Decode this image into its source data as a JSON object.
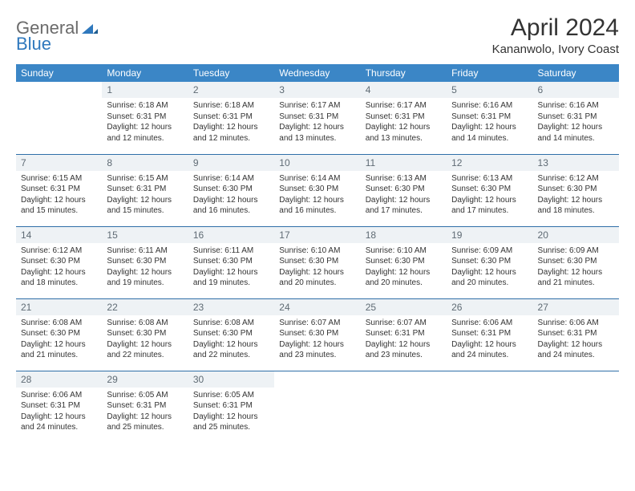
{
  "brand": {
    "general": "General",
    "blue": "Blue"
  },
  "title": "April 2024",
  "location": "Kananwolo, Ivory Coast",
  "colors": {
    "header_bg": "#3b86c6",
    "header_text": "#ffffff",
    "daynum_bg": "#eef2f5",
    "daynum_text": "#5f6b74",
    "rule": "#2f6fa8",
    "body_text": "#333333",
    "logo_gray": "#6b6b6b",
    "logo_blue": "#2f78bd"
  },
  "typography": {
    "title_fontsize": 30,
    "location_fontsize": 15,
    "dayheader_fontsize": 12,
    "daynum_fontsize": 12,
    "cell_fontsize": 10
  },
  "day_headers": [
    "Sunday",
    "Monday",
    "Tuesday",
    "Wednesday",
    "Thursday",
    "Friday",
    "Saturday"
  ],
  "weeks": [
    [
      null,
      {
        "n": "1",
        "sunrise": "Sunrise: 6:18 AM",
        "sunset": "Sunset: 6:31 PM",
        "daylight": "Daylight: 12 hours and 12 minutes."
      },
      {
        "n": "2",
        "sunrise": "Sunrise: 6:18 AM",
        "sunset": "Sunset: 6:31 PM",
        "daylight": "Daylight: 12 hours and 12 minutes."
      },
      {
        "n": "3",
        "sunrise": "Sunrise: 6:17 AM",
        "sunset": "Sunset: 6:31 PM",
        "daylight": "Daylight: 12 hours and 13 minutes."
      },
      {
        "n": "4",
        "sunrise": "Sunrise: 6:17 AM",
        "sunset": "Sunset: 6:31 PM",
        "daylight": "Daylight: 12 hours and 13 minutes."
      },
      {
        "n": "5",
        "sunrise": "Sunrise: 6:16 AM",
        "sunset": "Sunset: 6:31 PM",
        "daylight": "Daylight: 12 hours and 14 minutes."
      },
      {
        "n": "6",
        "sunrise": "Sunrise: 6:16 AM",
        "sunset": "Sunset: 6:31 PM",
        "daylight": "Daylight: 12 hours and 14 minutes."
      }
    ],
    [
      {
        "n": "7",
        "sunrise": "Sunrise: 6:15 AM",
        "sunset": "Sunset: 6:31 PM",
        "daylight": "Daylight: 12 hours and 15 minutes."
      },
      {
        "n": "8",
        "sunrise": "Sunrise: 6:15 AM",
        "sunset": "Sunset: 6:31 PM",
        "daylight": "Daylight: 12 hours and 15 minutes."
      },
      {
        "n": "9",
        "sunrise": "Sunrise: 6:14 AM",
        "sunset": "Sunset: 6:30 PM",
        "daylight": "Daylight: 12 hours and 16 minutes."
      },
      {
        "n": "10",
        "sunrise": "Sunrise: 6:14 AM",
        "sunset": "Sunset: 6:30 PM",
        "daylight": "Daylight: 12 hours and 16 minutes."
      },
      {
        "n": "11",
        "sunrise": "Sunrise: 6:13 AM",
        "sunset": "Sunset: 6:30 PM",
        "daylight": "Daylight: 12 hours and 17 minutes."
      },
      {
        "n": "12",
        "sunrise": "Sunrise: 6:13 AM",
        "sunset": "Sunset: 6:30 PM",
        "daylight": "Daylight: 12 hours and 17 minutes."
      },
      {
        "n": "13",
        "sunrise": "Sunrise: 6:12 AM",
        "sunset": "Sunset: 6:30 PM",
        "daylight": "Daylight: 12 hours and 18 minutes."
      }
    ],
    [
      {
        "n": "14",
        "sunrise": "Sunrise: 6:12 AM",
        "sunset": "Sunset: 6:30 PM",
        "daylight": "Daylight: 12 hours and 18 minutes."
      },
      {
        "n": "15",
        "sunrise": "Sunrise: 6:11 AM",
        "sunset": "Sunset: 6:30 PM",
        "daylight": "Daylight: 12 hours and 19 minutes."
      },
      {
        "n": "16",
        "sunrise": "Sunrise: 6:11 AM",
        "sunset": "Sunset: 6:30 PM",
        "daylight": "Daylight: 12 hours and 19 minutes."
      },
      {
        "n": "17",
        "sunrise": "Sunrise: 6:10 AM",
        "sunset": "Sunset: 6:30 PM",
        "daylight": "Daylight: 12 hours and 20 minutes."
      },
      {
        "n": "18",
        "sunrise": "Sunrise: 6:10 AM",
        "sunset": "Sunset: 6:30 PM",
        "daylight": "Daylight: 12 hours and 20 minutes."
      },
      {
        "n": "19",
        "sunrise": "Sunrise: 6:09 AM",
        "sunset": "Sunset: 6:30 PM",
        "daylight": "Daylight: 12 hours and 20 minutes."
      },
      {
        "n": "20",
        "sunrise": "Sunrise: 6:09 AM",
        "sunset": "Sunset: 6:30 PM",
        "daylight": "Daylight: 12 hours and 21 minutes."
      }
    ],
    [
      {
        "n": "21",
        "sunrise": "Sunrise: 6:08 AM",
        "sunset": "Sunset: 6:30 PM",
        "daylight": "Daylight: 12 hours and 21 minutes."
      },
      {
        "n": "22",
        "sunrise": "Sunrise: 6:08 AM",
        "sunset": "Sunset: 6:30 PM",
        "daylight": "Daylight: 12 hours and 22 minutes."
      },
      {
        "n": "23",
        "sunrise": "Sunrise: 6:08 AM",
        "sunset": "Sunset: 6:30 PM",
        "daylight": "Daylight: 12 hours and 22 minutes."
      },
      {
        "n": "24",
        "sunrise": "Sunrise: 6:07 AM",
        "sunset": "Sunset: 6:30 PM",
        "daylight": "Daylight: 12 hours and 23 minutes."
      },
      {
        "n": "25",
        "sunrise": "Sunrise: 6:07 AM",
        "sunset": "Sunset: 6:31 PM",
        "daylight": "Daylight: 12 hours and 23 minutes."
      },
      {
        "n": "26",
        "sunrise": "Sunrise: 6:06 AM",
        "sunset": "Sunset: 6:31 PM",
        "daylight": "Daylight: 12 hours and 24 minutes."
      },
      {
        "n": "27",
        "sunrise": "Sunrise: 6:06 AM",
        "sunset": "Sunset: 6:31 PM",
        "daylight": "Daylight: 12 hours and 24 minutes."
      }
    ],
    [
      {
        "n": "28",
        "sunrise": "Sunrise: 6:06 AM",
        "sunset": "Sunset: 6:31 PM",
        "daylight": "Daylight: 12 hours and 24 minutes."
      },
      {
        "n": "29",
        "sunrise": "Sunrise: 6:05 AM",
        "sunset": "Sunset: 6:31 PM",
        "daylight": "Daylight: 12 hours and 25 minutes."
      },
      {
        "n": "30",
        "sunrise": "Sunrise: 6:05 AM",
        "sunset": "Sunset: 6:31 PM",
        "daylight": "Daylight: 12 hours and 25 minutes."
      },
      null,
      null,
      null,
      null
    ]
  ]
}
